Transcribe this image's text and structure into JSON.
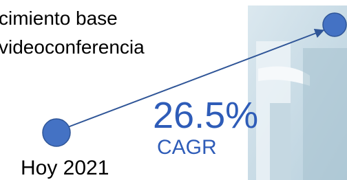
{
  "heading": {
    "line1": "cimiento base",
    "line2": "videoconferencia"
  },
  "growth": {
    "rate": "26.5%",
    "label": "CAGR"
  },
  "start_label": "Hoy 2021"
}
